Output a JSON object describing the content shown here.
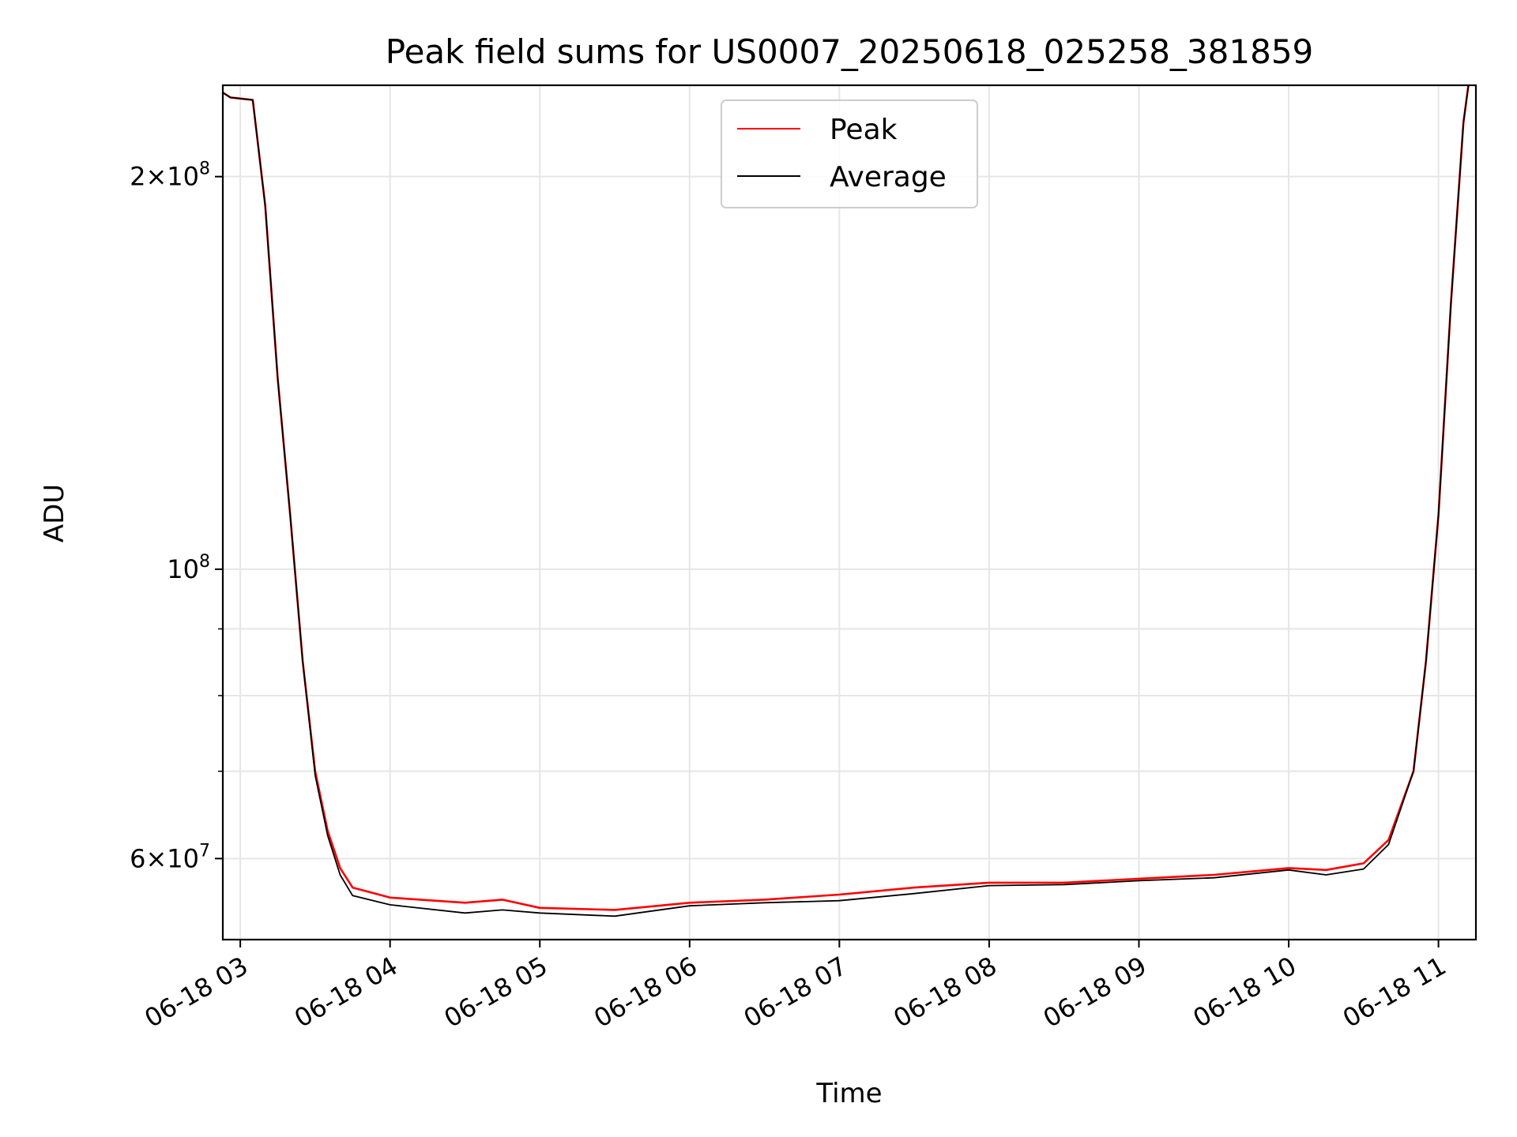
{
  "chart_data": {
    "type": "line",
    "title": "Peak field sums for US0007_20250618_025258_381859",
    "xlabel": "Time",
    "ylabel": "ADU",
    "y_scale": "log",
    "ylim": [
      52000000,
      235000000
    ],
    "xlim": [
      "2025-06-18 02:53",
      "2025-06-18 11:15"
    ],
    "x_ticks": [
      "06-18 03",
      "06-18 04",
      "06-18 05",
      "06-18 06",
      "06-18 07",
      "06-18 08",
      "06-18 09",
      "06-18 10",
      "06-18 11"
    ],
    "y_ticks": [
      {
        "value": 200000000,
        "mantissa": "2",
        "exponent": "8"
      },
      {
        "value": 100000000,
        "mantissa": "",
        "exponent": "8"
      },
      {
        "value": 60000000,
        "mantissa": "6",
        "exponent": "7"
      }
    ],
    "grid": true,
    "legend_position": "top-center",
    "series": [
      {
        "name": "Peak",
        "color": "#ff0000",
        "points": [
          [
            "2025-06-18 02:53",
            232000000
          ],
          [
            "2025-06-18 02:56",
            230000000
          ],
          [
            "2025-06-18 03:05",
            229000000
          ],
          [
            "2025-06-18 03:10",
            190000000
          ],
          [
            "2025-06-18 03:15",
            140000000
          ],
          [
            "2025-06-18 03:20",
            110000000
          ],
          [
            "2025-06-18 03:25",
            85000000
          ],
          [
            "2025-06-18 03:30",
            70000000
          ],
          [
            "2025-06-18 03:35",
            63000000
          ],
          [
            "2025-06-18 03:40",
            59000000
          ],
          [
            "2025-06-18 03:45",
            57000000
          ],
          [
            "2025-06-18 04:00",
            56000000
          ],
          [
            "2025-06-18 04:30",
            55500000
          ],
          [
            "2025-06-18 04:45",
            55800000
          ],
          [
            "2025-06-18 05:00",
            55000000
          ],
          [
            "2025-06-18 05:30",
            54800000
          ],
          [
            "2025-06-18 06:00",
            55500000
          ],
          [
            "2025-06-18 06:30",
            55800000
          ],
          [
            "2025-06-18 07:00",
            56300000
          ],
          [
            "2025-06-18 07:30",
            57000000
          ],
          [
            "2025-06-18 08:00",
            57500000
          ],
          [
            "2025-06-18 08:30",
            57500000
          ],
          [
            "2025-06-18 09:00",
            57900000
          ],
          [
            "2025-06-18 09:30",
            58300000
          ],
          [
            "2025-06-18 10:00",
            59000000
          ],
          [
            "2025-06-18 10:15",
            58800000
          ],
          [
            "2025-06-18 10:30",
            59500000
          ],
          [
            "2025-06-18 10:40",
            62000000
          ],
          [
            "2025-06-18 10:50",
            70000000
          ],
          [
            "2025-06-18 10:55",
            85000000
          ],
          [
            "2025-06-18 11:00",
            110000000
          ],
          [
            "2025-06-18 11:05",
            160000000
          ],
          [
            "2025-06-18 11:10",
            220000000
          ],
          [
            "2025-06-18 11:12",
            235000000
          ]
        ]
      },
      {
        "name": "Average",
        "color": "#000000",
        "points": [
          [
            "2025-06-18 02:53",
            232000000
          ],
          [
            "2025-06-18 02:56",
            230000000
          ],
          [
            "2025-06-18 03:05",
            229000000
          ],
          [
            "2025-06-18 03:10",
            190000000
          ],
          [
            "2025-06-18 03:15",
            140000000
          ],
          [
            "2025-06-18 03:20",
            110000000
          ],
          [
            "2025-06-18 03:25",
            85000000
          ],
          [
            "2025-06-18 03:30",
            69500000
          ],
          [
            "2025-06-18 03:35",
            62500000
          ],
          [
            "2025-06-18 03:40",
            58300000
          ],
          [
            "2025-06-18 03:45",
            56200000
          ],
          [
            "2025-06-18 04:00",
            55300000
          ],
          [
            "2025-06-18 04:30",
            54500000
          ],
          [
            "2025-06-18 04:45",
            54800000
          ],
          [
            "2025-06-18 05:00",
            54500000
          ],
          [
            "2025-06-18 05:30",
            54200000
          ],
          [
            "2025-06-18 06:00",
            55200000
          ],
          [
            "2025-06-18 06:30",
            55500000
          ],
          [
            "2025-06-18 07:00",
            55700000
          ],
          [
            "2025-06-18 07:30",
            56400000
          ],
          [
            "2025-06-18 08:00",
            57200000
          ],
          [
            "2025-06-18 08:30",
            57300000
          ],
          [
            "2025-06-18 09:00",
            57700000
          ],
          [
            "2025-06-18 09:30",
            58000000
          ],
          [
            "2025-06-18 10:00",
            58800000
          ],
          [
            "2025-06-18 10:15",
            58300000
          ],
          [
            "2025-06-18 10:30",
            58900000
          ],
          [
            "2025-06-18 10:40",
            61500000
          ],
          [
            "2025-06-18 10:50",
            70000000
          ],
          [
            "2025-06-18 10:55",
            85000000
          ],
          [
            "2025-06-18 11:00",
            110000000
          ],
          [
            "2025-06-18 11:05",
            160000000
          ],
          [
            "2025-06-18 11:10",
            220000000
          ],
          [
            "2025-06-18 11:12",
            235000000
          ]
        ]
      }
    ]
  }
}
